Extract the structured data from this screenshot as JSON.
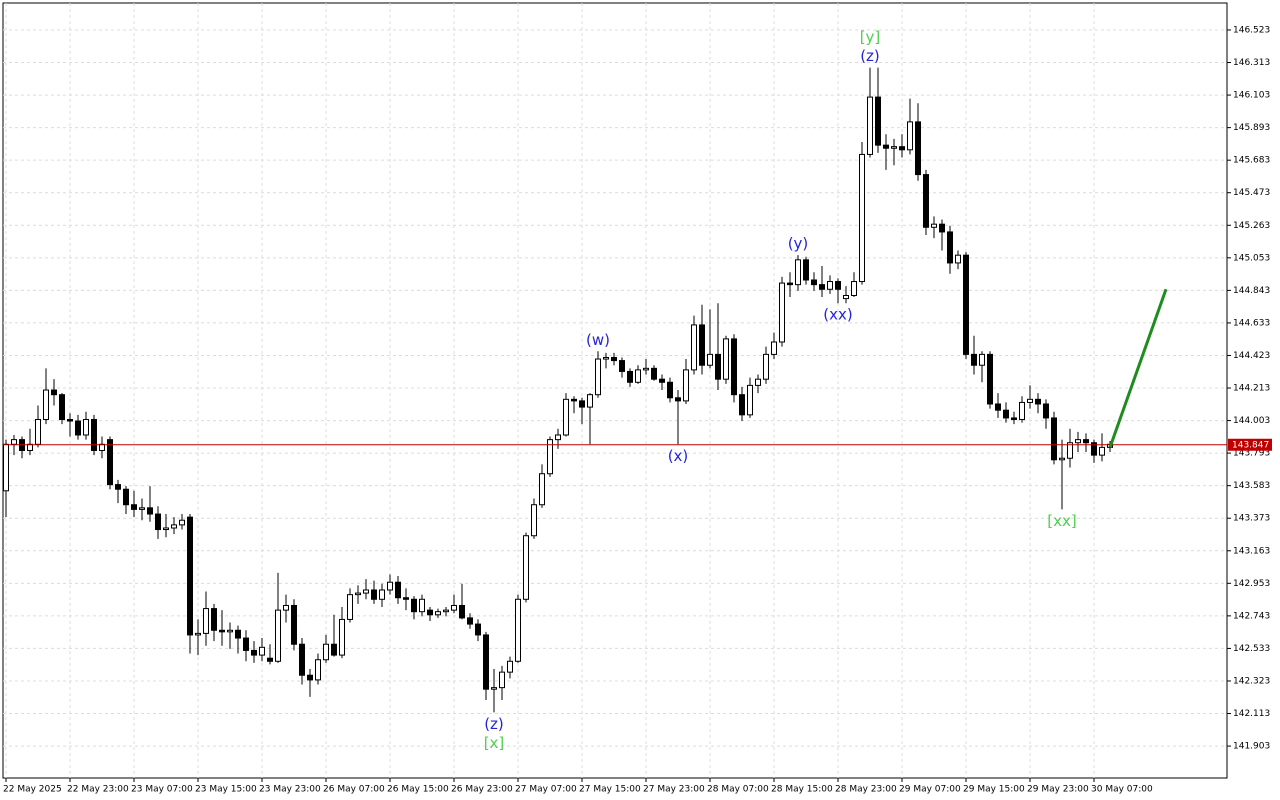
{
  "chart_data": {
    "type": "candlestick",
    "categories": [
      "22 May 2025",
      null,
      null,
      null,
      null,
      null,
      null,
      null,
      "22 May 23:00",
      null,
      null,
      null,
      null,
      null,
      null,
      null,
      "23 May 07:00",
      null,
      null,
      null,
      null,
      null,
      null,
      null,
      "23 May 15:00",
      null,
      null,
      null,
      null,
      null,
      null,
      null,
      "23 May 23:00",
      null,
      null,
      null,
      null,
      null,
      null,
      null,
      "26 May 07:00",
      null,
      null,
      null,
      null,
      null,
      null,
      null,
      "26 May 15:00",
      null,
      null,
      null,
      null,
      null,
      null,
      null,
      "26 May 23:00",
      null,
      null,
      null,
      null,
      null,
      null,
      null,
      "27 May 07:00",
      null,
      null,
      null,
      null,
      null,
      null,
      null,
      "27 May 15:00",
      null,
      null,
      null,
      null,
      null,
      null,
      null,
      "27 May 23:00",
      null,
      null,
      null,
      null,
      null,
      null,
      null,
      "28 May 07:00",
      null,
      null,
      null,
      null,
      null,
      null,
      null,
      "28 May 15:00",
      null,
      null,
      null,
      null,
      null,
      null,
      null,
      "28 May 23:00",
      null,
      null,
      null,
      null,
      null,
      null,
      null,
      "29 May 07:00",
      null,
      null,
      null,
      null,
      null,
      null,
      null,
      "29 May 15:00",
      null,
      null,
      null,
      null,
      null,
      null,
      null,
      "29 May 23:00",
      null,
      null,
      null,
      null,
      null,
      null,
      null,
      "30 May 07:00",
      null,
      null
    ],
    "open": [
      143.55,
      143.85,
      143.88,
      143.81,
      143.85,
      144.01,
      144.2,
      144.17,
      144.01,
      144.0,
      143.91,
      144.01,
      143.81,
      143.88,
      143.59,
      143.56,
      143.46,
      143.43,
      143.44,
      143.4,
      143.3,
      143.31,
      143.33,
      143.38,
      142.62,
      142.63,
      142.79,
      142.65,
      142.64,
      142.65,
      142.6,
      142.52,
      142.49,
      142.47,
      142.45,
      142.78,
      142.81,
      142.56,
      142.36,
      142.33,
      142.46,
      142.56,
      142.49,
      142.72,
      142.88,
      142.89,
      142.91,
      142.85,
      142.91,
      142.96,
      142.86,
      142.85,
      142.77,
      142.78,
      142.75,
      142.77,
      142.78,
      142.81,
      142.73,
      142.69,
      142.62,
      142.27,
      142.28,
      142.38,
      142.45,
      142.85,
      143.26,
      143.46,
      143.66,
      143.88,
      143.91,
      144.14,
      144.13,
      144.09,
      144.17,
      144.4,
      144.41,
      144.39,
      144.32,
      144.25,
      144.33,
      144.34,
      144.27,
      144.25,
      144.15,
      144.13,
      144.33,
      144.62,
      144.36,
      144.43,
      144.27,
      144.53,
      144.17,
      144.04,
      144.23,
      144.27,
      144.43,
      144.51,
      144.89,
      144.88,
      145.04,
      144.91,
      144.88,
      144.85,
      144.9,
      144.79,
      144.81,
      144.9,
      145.72,
      146.09,
      145.78,
      145.76,
      145.77,
      145.75,
      145.93,
      145.59,
      145.25,
      145.27,
      145.22,
      145.02,
      145.07,
      144.43,
      144.36,
      144.43,
      144.11,
      144.07,
      144.02,
      144.01,
      144.12,
      144.14,
      144.11,
      144.02,
      143.75,
      143.76,
      143.86,
      143.88,
      143.86,
      143.78,
      143.83
    ],
    "high": [
      143.88,
      143.91,
      143.9,
      143.95,
      144.1,
      144.34,
      144.27,
      144.18,
      144.05,
      144.04,
      144.06,
      144.04,
      143.9,
      143.9,
      143.62,
      143.58,
      143.55,
      143.5,
      143.58,
      143.45,
      143.4,
      143.38,
      143.4,
      143.4,
      142.72,
      142.9,
      142.82,
      142.78,
      142.7,
      142.68,
      142.65,
      142.58,
      142.6,
      142.56,
      143.02,
      142.88,
      142.85,
      142.6,
      142.4,
      142.5,
      142.62,
      142.75,
      142.8,
      142.92,
      142.94,
      142.98,
      142.97,
      142.95,
      143.01,
      143.0,
      142.92,
      142.87,
      142.88,
      142.8,
      142.79,
      142.8,
      142.88,
      142.95,
      142.76,
      142.72,
      142.64,
      142.4,
      142.42,
      142.48,
      142.88,
      143.28,
      143.5,
      143.72,
      143.9,
      143.95,
      144.18,
      144.16,
      144.15,
      144.18,
      144.45,
      144.44,
      144.44,
      144.41,
      144.34,
      144.36,
      144.4,
      144.36,
      144.3,
      144.28,
      144.2,
      144.4,
      144.68,
      144.75,
      144.72,
      144.76,
      144.55,
      144.56,
      144.22,
      144.28,
      144.3,
      144.48,
      144.57,
      144.93,
      144.96,
      145.07,
      145.06,
      144.96,
      145.0,
      144.94,
      144.92,
      144.87,
      144.96,
      145.8,
      146.28,
      146.28,
      145.85,
      145.82,
      145.85,
      146.08,
      146.05,
      145.62,
      145.32,
      145.3,
      145.26,
      145.1,
      145.09,
      144.55,
      144.45,
      144.45,
      144.18,
      144.12,
      144.06,
      144.16,
      144.23,
      144.18,
      144.14,
      144.06,
      143.88,
      143.95,
      143.93,
      143.92,
      143.88,
      143.92,
      143.87
    ],
    "low": [
      143.38,
      143.78,
      143.76,
      143.78,
      143.83,
      143.98,
      144.1,
      143.98,
      143.9,
      143.88,
      143.88,
      143.78,
      143.76,
      143.56,
      143.47,
      143.4,
      143.38,
      143.36,
      143.35,
      143.24,
      143.25,
      143.27,
      143.3,
      142.5,
      142.49,
      142.55,
      142.58,
      142.55,
      142.53,
      142.5,
      142.45,
      142.44,
      142.45,
      142.43,
      142.44,
      142.7,
      142.52,
      142.3,
      142.22,
      142.3,
      142.44,
      142.48,
      142.47,
      142.7,
      142.82,
      142.85,
      142.82,
      142.8,
      142.88,
      142.82,
      142.78,
      142.72,
      142.74,
      142.71,
      142.73,
      142.74,
      142.76,
      142.72,
      142.66,
      142.58,
      142.2,
      142.12,
      142.2,
      142.34,
      142.44,
      142.83,
      143.24,
      143.44,
      143.64,
      143.82,
      143.9,
      144.05,
      143.98,
      143.85,
      144.15,
      144.34,
      144.36,
      144.28,
      144.22,
      144.24,
      144.3,
      144.26,
      144.2,
      144.12,
      143.85,
      144.11,
      144.3,
      144.3,
      144.34,
      144.2,
      144.24,
      144.12,
      144.0,
      144.02,
      144.18,
      144.24,
      144.4,
      144.48,
      144.8,
      144.84,
      144.88,
      144.84,
      144.8,
      144.82,
      144.76,
      144.76,
      144.8,
      144.88,
      145.7,
      145.73,
      145.62,
      145.65,
      145.7,
      145.72,
      145.55,
      145.2,
      145.18,
      145.1,
      144.95,
      144.98,
      144.4,
      144.3,
      144.25,
      144.08,
      144.02,
      143.99,
      143.98,
      143.99,
      144.08,
      144.05,
      143.95,
      143.72,
      143.43,
      143.7,
      143.8,
      143.8,
      143.73,
      143.74,
      143.8
    ],
    "close": [
      143.85,
      143.88,
      143.81,
      143.85,
      144.01,
      144.2,
      144.17,
      144.01,
      144.0,
      143.91,
      144.01,
      143.81,
      143.85,
      143.59,
      143.56,
      143.46,
      143.43,
      143.44,
      143.4,
      143.3,
      143.31,
      143.33,
      143.36,
      142.62,
      142.63,
      142.79,
      142.65,
      142.64,
      142.65,
      142.6,
      142.52,
      142.49,
      142.54,
      142.45,
      142.78,
      142.81,
      142.56,
      142.36,
      142.33,
      142.46,
      142.56,
      142.49,
      142.72,
      142.88,
      142.89,
      142.91,
      142.85,
      142.91,
      142.96,
      142.86,
      142.85,
      142.77,
      142.85,
      142.75,
      142.77,
      142.78,
      142.81,
      142.73,
      142.69,
      142.62,
      142.27,
      142.28,
      142.38,
      142.45,
      142.85,
      143.26,
      143.46,
      143.66,
      143.88,
      143.91,
      144.14,
      144.13,
      144.09,
      144.17,
      144.4,
      144.41,
      144.39,
      144.32,
      144.25,
      144.33,
      144.34,
      144.27,
      144.25,
      144.15,
      144.13,
      144.33,
      144.62,
      144.36,
      144.43,
      144.27,
      144.53,
      144.17,
      144.04,
      144.23,
      144.27,
      144.43,
      144.51,
      144.89,
      144.88,
      145.04,
      144.91,
      144.88,
      144.85,
      144.9,
      144.85,
      144.81,
      144.9,
      145.72,
      146.09,
      145.78,
      145.76,
      145.77,
      145.75,
      145.93,
      145.59,
      145.25,
      145.27,
      145.22,
      145.02,
      145.07,
      144.43,
      144.36,
      144.43,
      144.11,
      144.07,
      144.02,
      144.01,
      144.12,
      144.14,
      144.11,
      144.02,
      143.75,
      143.76,
      143.86,
      143.88,
      143.86,
      143.78,
      143.83,
      143.85
    ],
    "up_color": "#ffffff",
    "down_color": "#000000",
    "wick_color": "#000000",
    "ylim": [
      141.697,
      146.697
    ],
    "yticks": [
      141.903,
      142.113,
      142.323,
      142.533,
      142.743,
      142.953,
      143.163,
      143.373,
      143.583,
      143.793,
      144.003,
      144.213,
      144.423,
      144.633,
      144.843,
      145.053,
      145.263,
      145.473,
      145.683,
      145.893,
      146.103,
      146.313,
      146.523
    ],
    "grid": true,
    "last_price": {
      "value": 143.847,
      "color": "#c00000"
    },
    "projection": {
      "color": "#1e8c1e",
      "x": [
        138,
        145
      ],
      "values": [
        143.83,
        144.85
      ]
    },
    "annotations": [
      {
        "text": "(z)",
        "color": "#2424d8",
        "bar": 61,
        "side": "below"
      },
      {
        "text": "[x]",
        "color": "#4fcf4f",
        "bar": 61,
        "side": "below"
      },
      {
        "text": "(w)",
        "color": "#2424d8",
        "bar": 74,
        "side": "above"
      },
      {
        "text": "(x)",
        "color": "#2424d8",
        "bar": 84,
        "side": "below"
      },
      {
        "text": "(y)",
        "color": "#2424d8",
        "bar": 99,
        "side": "above"
      },
      {
        "text": "(xx)",
        "color": "#2424d8",
        "bar": 104,
        "side": "below"
      },
      {
        "text": "(z)",
        "color": "#2424d8",
        "bar": 108,
        "side": "above"
      },
      {
        "text": "[y]",
        "color": "#4fcf4f",
        "bar": 108,
        "side": "above"
      },
      {
        "text": "[xx]",
        "color": "#4fcf4f",
        "bar": 132,
        "side": "below"
      }
    ]
  }
}
